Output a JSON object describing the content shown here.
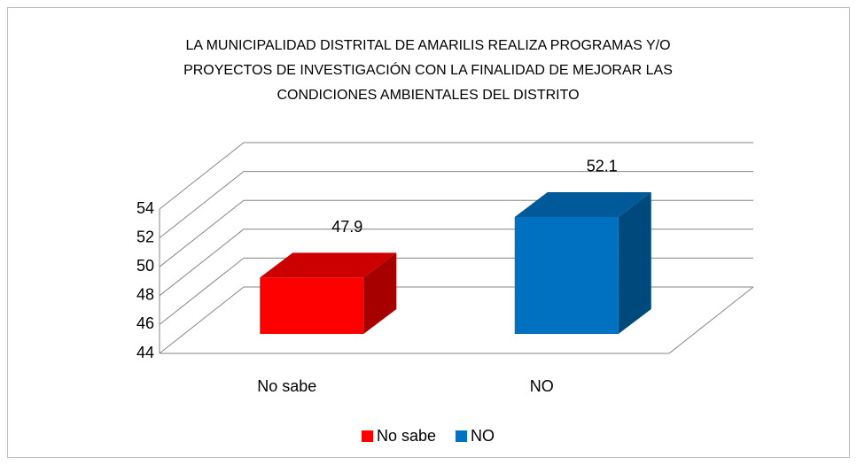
{
  "chart_data": {
    "type": "bar3d",
    "title": [
      "LA MUNICIPALIDAD DISTRITAL DE AMARILIS REALIZA PROGRAMAS Y/O",
      "PROYECTOS DE INVESTIGACIÓN CON LA FINALIDAD DE MEJORAR LAS",
      "CONDICIONES AMBIENTALES DEL DISTRITO"
    ],
    "categories": [
      "No sabe",
      "NO"
    ],
    "values": [
      47.9,
      52.1
    ],
    "colors": [
      "#ff0000",
      "#0070c0"
    ],
    "ylim": [
      44,
      54
    ],
    "yticks": [
      44,
      46,
      48,
      50,
      52,
      54
    ],
    "grid": true,
    "legend": "bottom"
  }
}
